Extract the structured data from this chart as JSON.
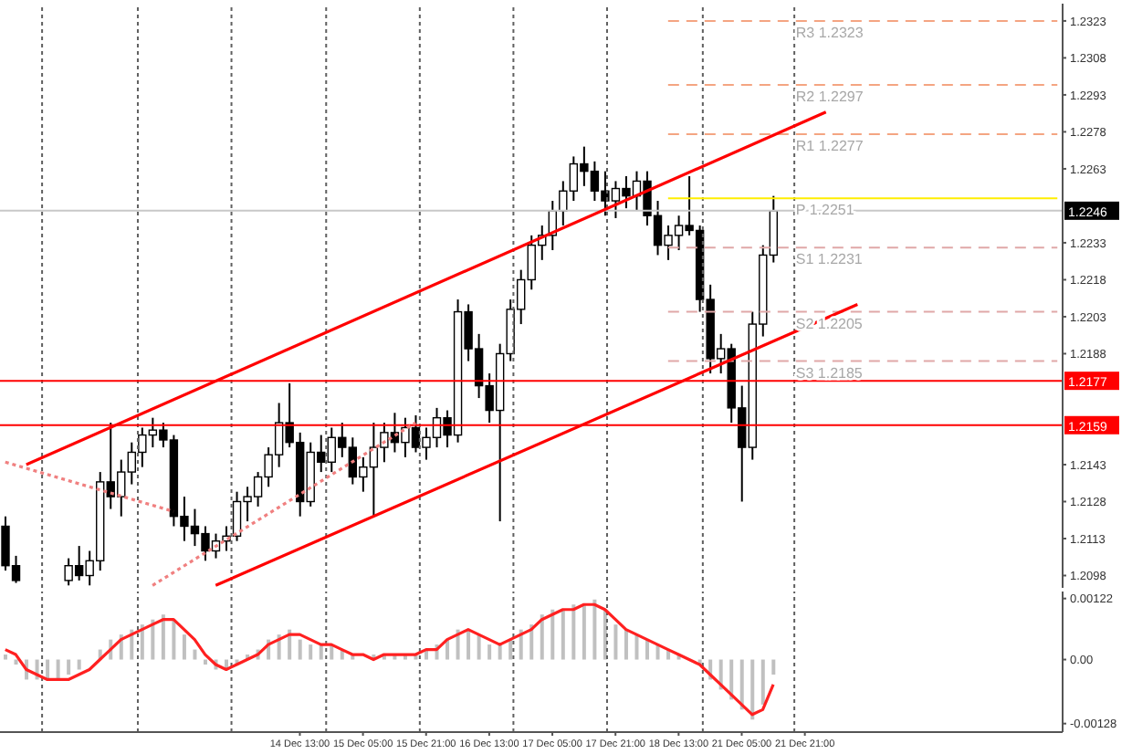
{
  "chart_data": [
    {
      "type": "candlestick",
      "ohlc": [
        [
          1.2118,
          1.2122,
          1.21,
          1.2102
        ],
        [
          1.2102,
          1.2106,
          1.2095,
          1.2096
        ],
        null,
        null,
        null,
        null,
        [
          1.2096,
          1.2105,
          1.2094,
          1.2102
        ],
        [
          1.2102,
          1.211,
          1.2096,
          1.2098
        ],
        [
          1.2098,
          1.2108,
          1.2094,
          1.2104
        ],
        [
          1.2104,
          1.214,
          1.21,
          1.2136
        ],
        [
          1.2136,
          1.216,
          1.2125,
          1.213
        ],
        [
          1.213,
          1.2145,
          1.2122,
          1.214
        ],
        [
          1.214,
          1.2152,
          1.2135,
          1.2148
        ],
        [
          1.2148,
          1.2158,
          1.2142,
          1.2155
        ],
        [
          1.2155,
          1.2162,
          1.215,
          1.2157
        ],
        [
          1.2157,
          1.216,
          1.215,
          1.2153
        ],
        [
          1.2153,
          1.2155,
          1.2118,
          1.2122
        ],
        [
          1.2122,
          1.213,
          1.2112,
          1.2118
        ],
        [
          1.2118,
          1.2125,
          1.211,
          1.2115
        ],
        [
          1.2115,
          1.2118,
          1.2104,
          1.2108
        ],
        [
          1.2108,
          1.2115,
          1.2105,
          1.2112
        ],
        [
          1.2112,
          1.2118,
          1.2108,
          1.2114
        ],
        [
          1.2114,
          1.2132,
          1.2112,
          1.2128
        ],
        [
          1.2128,
          1.2134,
          1.212,
          1.213
        ],
        [
          1.213,
          1.214,
          1.2126,
          1.2138
        ],
        [
          1.2138,
          1.215,
          1.2134,
          1.2147
        ],
        [
          1.2147,
          1.2168,
          1.2142,
          1.216
        ],
        [
          1.216,
          1.2176,
          1.215,
          1.2152
        ],
        [
          1.2152,
          1.2156,
          1.2122,
          1.2128
        ],
        [
          1.2128,
          1.2152,
          1.2126,
          1.2148
        ],
        [
          1.2148,
          1.2155,
          1.214,
          1.2144
        ],
        [
          1.2144,
          1.2158,
          1.214,
          1.2154
        ],
        [
          1.2154,
          1.216,
          1.2146,
          1.215
        ],
        [
          1.215,
          1.2154,
          1.2135,
          1.2138
        ],
        [
          1.2138,
          1.2146,
          1.2132,
          1.2142
        ],
        [
          1.2142,
          1.216,
          1.2122,
          1.215
        ],
        [
          1.215,
          1.216,
          1.2144,
          1.2156
        ],
        [
          1.2156,
          1.2164,
          1.2148,
          1.2152
        ],
        [
          1.2152,
          1.2162,
          1.2146,
          1.2158
        ],
        [
          1.2158,
          1.2163,
          1.2148,
          1.215
        ],
        [
          1.215,
          1.2158,
          1.2145,
          1.2154
        ],
        [
          1.2154,
          1.2166,
          1.215,
          1.2162
        ],
        [
          1.2162,
          1.2165,
          1.215,
          1.2155
        ],
        [
          1.2155,
          1.221,
          1.2152,
          1.2205
        ],
        [
          1.2205,
          1.2208,
          1.2185,
          1.219
        ],
        [
          1.219,
          1.2196,
          1.217,
          1.2175
        ],
        [
          1.2175,
          1.218,
          1.216,
          1.2165
        ],
        [
          1.2165,
          1.2192,
          1.212,
          1.2188
        ],
        [
          1.2188,
          1.221,
          1.2185,
          1.2206
        ],
        [
          1.2206,
          1.2222,
          1.22,
          1.2218
        ],
        [
          1.2218,
          1.2236,
          1.2214,
          1.2232
        ],
        [
          1.2232,
          1.224,
          1.2226,
          1.2236
        ],
        [
          1.2236,
          1.225,
          1.223,
          1.2246
        ],
        [
          1.2246,
          1.2258,
          1.224,
          1.2254
        ],
        [
          1.2254,
          1.2268,
          1.225,
          1.2265
        ],
        [
          1.2265,
          1.2272,
          1.2256,
          1.2262
        ],
        [
          1.2262,
          1.2266,
          1.225,
          1.2254
        ],
        [
          1.2254,
          1.2262,
          1.2244,
          1.225
        ],
        [
          1.225,
          1.2258,
          1.2243,
          1.2255
        ],
        [
          1.2255,
          1.226,
          1.2247,
          1.2252
        ],
        [
          1.2252,
          1.2262,
          1.2246,
          1.2258
        ],
        [
          1.2258,
          1.2262,
          1.224,
          1.2244
        ],
        [
          1.2244,
          1.225,
          1.2228,
          1.2232
        ],
        [
          1.2232,
          1.224,
          1.2226,
          1.2236
        ],
        [
          1.2236,
          1.2244,
          1.223,
          1.224
        ],
        [
          1.224,
          1.226,
          1.2236,
          1.2238
        ],
        [
          1.2238,
          1.224,
          1.2205,
          1.221
        ],
        [
          1.221,
          1.2216,
          1.218,
          1.2186
        ],
        [
          1.2186,
          1.2196,
          1.218,
          1.219
        ],
        [
          1.219,
          1.2192,
          1.216,
          1.2166
        ],
        [
          1.2166,
          1.2175,
          1.2128,
          1.215
        ],
        [
          1.215,
          1.2205,
          1.2145,
          1.22
        ],
        [
          1.22,
          1.2232,
          1.2195,
          1.2228
        ],
        [
          1.2228,
          1.2252,
          1.2225,
          1.2246
        ],
        null,
        null,
        null,
        null,
        null,
        null,
        null,
        null,
        null,
        null,
        null,
        null,
        null,
        null,
        null,
        null,
        null,
        null,
        null,
        null,
        null,
        null,
        null,
        null,
        null,
        null,
        null
      ],
      "ylim": [
        1.2093,
        1.233
      ],
      "yticks": [
        1.2323,
        1.2308,
        1.2293,
        1.2278,
        1.2263,
        1.2233,
        1.2218,
        1.2203,
        1.2188,
        1.2143,
        1.2128,
        1.2113,
        1.2098
      ],
      "tick_labels": "y",
      "marker": "none",
      "series": [
        {
          "type": "line",
          "values": [
            null,
            null,
            1.2143,
            null,
            null,
            null,
            null,
            null,
            null,
            null,
            null,
            null,
            null,
            null,
            null,
            null,
            null,
            null,
            null,
            null,
            null,
            null,
            null,
            null,
            null,
            null,
            null,
            null,
            null,
            null,
            null,
            null,
            null,
            null,
            null,
            null,
            null,
            null,
            null,
            null,
            null,
            null,
            null,
            null,
            null,
            null,
            null,
            null,
            null,
            null,
            null,
            null,
            null,
            null,
            null,
            null,
            null,
            null,
            null,
            null,
            null,
            null,
            null,
            null,
            null,
            null,
            null,
            null,
            null,
            null,
            null,
            null,
            null,
            null,
            null,
            null,
            null,
            null,
            1.2286,
            null,
            null,
            null,
            null,
            null,
            null,
            null,
            null,
            null,
            null,
            null,
            null,
            null,
            null,
            null,
            null,
            null,
            null,
            null,
            null,
            null,
            null
          ],
          "color": "#ff0000",
          "line_style": "solid"
        },
        {
          "type": "line",
          "values": [
            null,
            null,
            null,
            null,
            null,
            null,
            null,
            null,
            null,
            null,
            null,
            null,
            null,
            null,
            null,
            null,
            null,
            null,
            null,
            null,
            1.2094,
            null,
            null,
            null,
            null,
            null,
            null,
            null,
            null,
            null,
            null,
            null,
            null,
            null,
            null,
            null,
            null,
            null,
            null,
            null,
            null,
            null,
            null,
            null,
            null,
            null,
            null,
            null,
            null,
            null,
            null,
            null,
            null,
            null,
            null,
            null,
            null,
            null,
            null,
            null,
            null,
            null,
            null,
            null,
            null,
            null,
            null,
            null,
            null,
            null,
            null,
            null,
            null,
            null,
            null,
            null,
            null,
            null,
            null,
            null,
            null,
            1.2208,
            null,
            null,
            null,
            null,
            null,
            null,
            null,
            null,
            null,
            null,
            null,
            null,
            null,
            null,
            null,
            null,
            null,
            null,
            null
          ],
          "color": "#ff0000",
          "line_style": "solid"
        },
        {
          "type": "line",
          "values": [
            1.2144,
            null,
            null,
            null,
            null,
            null,
            null,
            null,
            null,
            null,
            null,
            null,
            null,
            null,
            null,
            null,
            1.2124,
            null,
            null,
            null,
            null,
            null,
            null,
            null,
            null,
            null,
            null,
            null,
            null,
            null,
            null,
            null,
            null,
            null,
            null,
            null,
            null,
            null,
            null,
            null,
            null,
            null,
            null,
            null,
            null,
            null,
            null,
            null,
            null,
            null,
            null,
            null,
            null,
            null,
            null,
            null,
            null,
            null,
            null,
            null,
            null,
            null,
            null,
            null,
            null,
            null,
            null,
            null,
            null,
            null,
            null,
            null,
            null,
            null,
            null,
            null,
            null,
            null,
            null,
            null,
            null,
            null,
            null,
            null,
            null,
            null,
            null,
            null,
            null,
            null,
            null,
            null,
            null,
            null,
            null,
            null,
            null,
            null,
            null,
            null,
            null
          ],
          "color": "#f08080",
          "line_style": "dotted"
        },
        {
          "type": "line",
          "values": [
            null,
            null,
            null,
            null,
            null,
            null,
            null,
            null,
            null,
            null,
            null,
            null,
            null,
            null,
            1.2094,
            null,
            null,
            null,
            null,
            null,
            null,
            null,
            null,
            null,
            null,
            null,
            null,
            null,
            null,
            null,
            null,
            null,
            null,
            null,
            null,
            null,
            null,
            null,
            null,
            1.216,
            null,
            null,
            null,
            null,
            null,
            null,
            null,
            null,
            null,
            null,
            null,
            null,
            null,
            null,
            null,
            null,
            null,
            null,
            null,
            null,
            null,
            null,
            null,
            null,
            null,
            null,
            null,
            null,
            null,
            null,
            null,
            null,
            null,
            null,
            null,
            null,
            null,
            null,
            null,
            null,
            null,
            null,
            null,
            null,
            null,
            null,
            null,
            null,
            null,
            null,
            null,
            null,
            null,
            null,
            null,
            null,
            null,
            null,
            null,
            null,
            null
          ],
          "color": "#f08080",
          "line_style": "dotted"
        },
        {
          "type": "line",
          "name": "R3 1.2323",
          "values": [
            null,
            null,
            null,
            null,
            null,
            null,
            null,
            null,
            null,
            null,
            null,
            null,
            null,
            null,
            null,
            null,
            null,
            null,
            null,
            null,
            null,
            null,
            null,
            null,
            null,
            null,
            null,
            null,
            null,
            null,
            null,
            null,
            null,
            null,
            null,
            null,
            null,
            null,
            null,
            null,
            null,
            null,
            null,
            null,
            null,
            null,
            null,
            null,
            null,
            null,
            null,
            null,
            null,
            null,
            null,
            null,
            null,
            null,
            null,
            null,
            null,
            null,
            null,
            1.2323,
            null,
            null,
            null,
            null,
            null,
            null,
            null,
            null,
            null,
            null,
            null,
            null,
            null,
            null,
            null,
            null,
            null,
            null,
            null,
            null,
            null,
            null,
            null,
            null,
            null,
            null,
            null,
            null,
            null,
            null,
            null,
            null,
            null,
            null,
            null,
            null,
            1.2323
          ],
          "color": "#f4a582",
          "line_style": "dashed"
        },
        {
          "type": "line",
          "name": "R2 1.2297",
          "values": [
            null,
            null,
            null,
            null,
            null,
            null,
            null,
            null,
            null,
            null,
            null,
            null,
            null,
            null,
            null,
            null,
            null,
            null,
            null,
            null,
            null,
            null,
            null,
            null,
            null,
            null,
            null,
            null,
            null,
            null,
            null,
            null,
            null,
            null,
            null,
            null,
            null,
            null,
            null,
            null,
            null,
            null,
            null,
            null,
            null,
            null,
            null,
            null,
            null,
            null,
            null,
            null,
            null,
            null,
            null,
            null,
            null,
            null,
            null,
            null,
            null,
            null,
            null,
            1.2297,
            null,
            null,
            null,
            null,
            null,
            null,
            null,
            null,
            null,
            null,
            null,
            null,
            null,
            null,
            null,
            null,
            null,
            null,
            null,
            null,
            null,
            null,
            null,
            null,
            null,
            null,
            null,
            null,
            null,
            null,
            null,
            null,
            null,
            null,
            null,
            null,
            1.2297
          ],
          "color": "#f4a582",
          "line_style": "dashed"
        },
        {
          "type": "line",
          "name": "R1 1.2277",
          "values": [
            null,
            null,
            null,
            null,
            null,
            null,
            null,
            null,
            null,
            null,
            null,
            null,
            null,
            null,
            null,
            null,
            null,
            null,
            null,
            null,
            null,
            null,
            null,
            null,
            null,
            null,
            null,
            null,
            null,
            null,
            null,
            null,
            null,
            null,
            null,
            null,
            null,
            null,
            null,
            null,
            null,
            null,
            null,
            null,
            null,
            null,
            null,
            null,
            null,
            null,
            null,
            null,
            null,
            null,
            null,
            null,
            null,
            null,
            null,
            null,
            null,
            null,
            null,
            1.2277,
            null,
            null,
            null,
            null,
            null,
            null,
            null,
            null,
            null,
            null,
            null,
            null,
            null,
            null,
            null,
            null,
            null,
            null,
            null,
            null,
            null,
            null,
            null,
            null,
            null,
            null,
            null,
            null,
            null,
            null,
            null,
            null,
            null,
            null,
            null,
            null,
            1.2277
          ],
          "color": "#f4a582",
          "line_style": "dashed"
        },
        {
          "type": "line",
          "name": "P 1.2251",
          "values": [
            null,
            null,
            null,
            null,
            null,
            null,
            null,
            null,
            null,
            null,
            null,
            null,
            null,
            null,
            null,
            null,
            null,
            null,
            null,
            null,
            null,
            null,
            null,
            null,
            null,
            null,
            null,
            null,
            null,
            null,
            null,
            null,
            null,
            null,
            null,
            null,
            null,
            null,
            null,
            null,
            null,
            null,
            null,
            null,
            null,
            null,
            null,
            null,
            null,
            null,
            null,
            null,
            null,
            null,
            null,
            null,
            null,
            null,
            null,
            null,
            null,
            null,
            null,
            1.2251,
            null,
            null,
            null,
            null,
            null,
            null,
            null,
            null,
            null,
            null,
            null,
            null,
            null,
            null,
            null,
            null,
            null,
            null,
            null,
            null,
            null,
            null,
            null,
            null,
            null,
            null,
            null,
            null,
            null,
            null,
            null,
            null,
            null,
            null,
            null,
            null,
            1.2251
          ],
          "color": "#ffee00",
          "line_style": "solid"
        },
        {
          "type": "line",
          "name": "S1 1.2231",
          "values": [
            null,
            null,
            null,
            null,
            null,
            null,
            null,
            null,
            null,
            null,
            null,
            null,
            null,
            null,
            null,
            null,
            null,
            null,
            null,
            null,
            null,
            null,
            null,
            null,
            null,
            null,
            null,
            null,
            null,
            null,
            null,
            null,
            null,
            null,
            null,
            null,
            null,
            null,
            null,
            null,
            null,
            null,
            null,
            null,
            null,
            null,
            null,
            null,
            null,
            null,
            null,
            null,
            null,
            null,
            null,
            null,
            null,
            null,
            null,
            null,
            null,
            null,
            null,
            1.2231,
            null,
            null,
            null,
            null,
            null,
            null,
            null,
            null,
            null,
            null,
            null,
            null,
            null,
            null,
            null,
            null,
            null,
            null,
            null,
            null,
            null,
            null,
            null,
            null,
            null,
            null,
            null,
            null,
            null,
            null,
            null,
            null,
            null,
            null,
            null,
            null,
            1.2231
          ],
          "color": "#e0a8a8",
          "line_style": "dashed"
        },
        {
          "type": "line",
          "name": "S2 1.2205",
          "values": [
            null,
            null,
            null,
            null,
            null,
            null,
            null,
            null,
            null,
            null,
            null,
            null,
            null,
            null,
            null,
            null,
            null,
            null,
            null,
            null,
            null,
            null,
            null,
            null,
            null,
            null,
            null,
            null,
            null,
            null,
            null,
            null,
            null,
            null,
            null,
            null,
            null,
            null,
            null,
            null,
            null,
            null,
            null,
            null,
            null,
            null,
            null,
            null,
            null,
            null,
            null,
            null,
            null,
            null,
            null,
            null,
            null,
            null,
            null,
            null,
            null,
            null,
            null,
            1.2205,
            null,
            null,
            null,
            null,
            null,
            null,
            null,
            null,
            null,
            null,
            null,
            null,
            null,
            null,
            null,
            null,
            null,
            null,
            null,
            null,
            null,
            null,
            null,
            null,
            null,
            null,
            null,
            null,
            null,
            null,
            null,
            null,
            null,
            null,
            null,
            null,
            1.2205
          ],
          "color": "#e0a8a8",
          "line_style": "dashed"
        },
        {
          "type": "line",
          "name": "S3 1.2185",
          "values": [
            null,
            null,
            null,
            null,
            null,
            null,
            null,
            null,
            null,
            null,
            null,
            null,
            null,
            null,
            null,
            null,
            null,
            null,
            null,
            null,
            null,
            null,
            null,
            null,
            null,
            null,
            null,
            null,
            null,
            null,
            null,
            null,
            null,
            null,
            null,
            null,
            null,
            null,
            null,
            null,
            null,
            null,
            null,
            null,
            null,
            null,
            null,
            null,
            null,
            null,
            null,
            null,
            null,
            null,
            null,
            null,
            null,
            null,
            null,
            null,
            null,
            null,
            null,
            1.2185,
            null,
            null,
            null,
            null,
            null,
            null,
            null,
            null,
            null,
            null,
            null,
            null,
            null,
            null,
            null,
            null,
            null,
            null,
            null,
            null,
            null,
            null,
            null,
            null,
            null,
            null,
            null,
            null,
            null,
            null,
            null,
            null,
            null,
            null,
            null,
            null,
            1.2185
          ],
          "color": "#e0a8a8",
          "line_style": "dashed"
        }
      ],
      "ref_lines": [
        {
          "axis": "y",
          "value": 1.2246,
          "label": "1.2246",
          "color": "#c8c8c8",
          "line_style": "solid"
        },
        {
          "axis": "y",
          "value": 1.2177,
          "label": "1.2177",
          "color": "#ff0000",
          "line_style": "solid"
        },
        {
          "axis": "y",
          "value": 1.2159,
          "label": "1.2159",
          "color": "#ff0000",
          "line_style": "solid"
        }
      ]
    },
    {
      "type": "bar",
      "categories": [
        null,
        null,
        null,
        null,
        null,
        null,
        null,
        null,
        null,
        null,
        null,
        null,
        null,
        null,
        null,
        null,
        null,
        null,
        null,
        null,
        null,
        null,
        null,
        null,
        null,
        null,
        null,
        null,
        "14 Dec 13:00",
        null,
        null,
        null,
        null,
        null,
        "15 Dec 05:00",
        null,
        null,
        null,
        null,
        null,
        "15 Dec 21:00",
        null,
        null,
        null,
        null,
        null,
        "16 Dec 13:00",
        null,
        null,
        null,
        null,
        null,
        "17 Dec 05:00",
        null,
        null,
        null,
        null,
        null,
        "17 Dec 21:00",
        null,
        null,
        null,
        null,
        null,
        "18 Dec 13:00",
        null,
        null,
        null,
        null,
        null,
        "21 Dec 05:00",
        null,
        null,
        null,
        null,
        null,
        "21 Dec 21:00",
        null,
        null,
        null,
        null,
        null,
        null,
        null,
        null,
        null,
        null,
        null,
        null,
        null,
        null,
        null,
        null,
        null,
        null,
        null,
        null,
        null,
        null,
        null,
        null
      ],
      "ylim": [
        -0.00145,
        0.00136
      ],
      "yticks": [
        0.00122,
        {
          "value": 0,
          "label": "0.00"
        },
        -0.00128
      ],
      "marker": "none",
      "series": [
        {
          "type": "bar",
          "color": "#c0c0c0",
          "values": [
            0.0001,
            -0.0001,
            -0.0004,
            -0.0004,
            -0.0004,
            -0.0004,
            -0.0003,
            -0.0002,
            0,
            0.0002,
            0.0004,
            0.0005,
            0.0006,
            0.0007,
            0.0008,
            0.0009,
            0.0008,
            0.0005,
            0.0002,
            -0.0001,
            -0.0002,
            -0.0002,
            -0.0001,
            0.0001,
            0.0002,
            0.0004,
            0.0005,
            0.0006,
            0.0004,
            0.0003,
            0.0003,
            0.0003,
            0.0002,
            0.0001,
            0,
            0.0001,
            0.0001,
            0.0001,
            0.0001,
            0.0001,
            0.0002,
            0.0003,
            0.0004,
            0.0006,
            0.0006,
            0.0005,
            0.0003,
            0.0003,
            0.0004,
            0.0006,
            0.0007,
            0.0009,
            0.001,
            0.001,
            0.0011,
            0.0011,
            0.0012,
            0.001,
            0.0007,
            0.0006,
            0.0005,
            0.0004,
            0.0003,
            0.0002,
            0.0001,
            0,
            -0.0001,
            -0.0004,
            -0.0006,
            -0.0008,
            -0.001,
            -0.0012,
            -0.0009,
            -0.0003,
            null,
            null,
            null,
            null,
            null,
            null,
            null,
            null,
            null,
            null,
            null,
            null,
            null,
            null,
            null,
            null,
            null,
            null,
            null,
            null,
            null,
            null,
            null,
            null,
            null,
            null,
            null
          ]
        },
        {
          "type": "line",
          "color": "#ff2020",
          "line_style": "solid",
          "values": [
            0.0002,
            0.0001,
            -0.0002,
            -0.0003,
            -0.0004,
            -0.0004,
            -0.0004,
            -0.0003,
            -0.0002,
            0,
            0.0002,
            0.0004,
            0.0005,
            0.0006,
            0.0007,
            0.0008,
            0.0008,
            0.0006,
            0.0004,
            0.0001,
            -0.0001,
            -0.0002,
            -0.0001,
            0,
            0.0001,
            0.0003,
            0.0004,
            0.0005,
            0.0005,
            0.0004,
            0.0003,
            0.0003,
            0.0002,
            0.0001,
            0.0001,
            0,
            0.0001,
            0.0001,
            0.0001,
            0.0001,
            0.0002,
            0.0002,
            0.0004,
            0.0005,
            0.0006,
            0.0005,
            0.0004,
            0.0003,
            0.0004,
            0.0005,
            0.0006,
            0.0008,
            0.0009,
            0.001,
            0.001,
            0.0011,
            0.0011,
            0.001,
            0.0008,
            0.0006,
            0.0005,
            0.0004,
            0.0003,
            0.0002,
            0.0001,
            0,
            -0.0001,
            -0.0003,
            -0.0005,
            -0.0007,
            -0.0009,
            -0.0011,
            -0.001,
            -0.0005,
            null,
            null,
            null,
            null,
            null,
            null,
            null,
            null,
            null,
            null,
            null,
            null,
            null,
            null,
            null,
            null,
            null,
            null,
            null,
            null,
            null,
            null,
            null,
            null,
            null,
            null,
            null
          ]
        }
      ]
    }
  ]
}
